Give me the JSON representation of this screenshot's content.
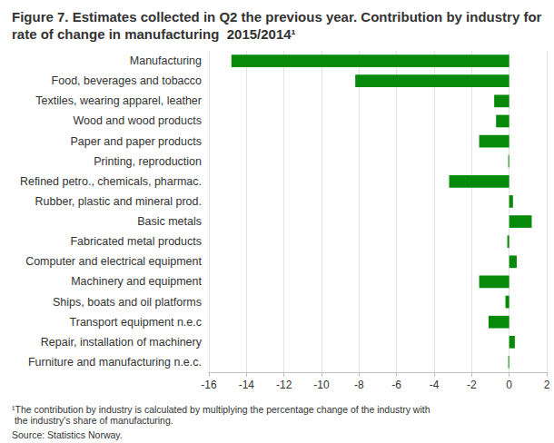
{
  "chart_data": {
    "type": "bar",
    "orientation": "horizontal",
    "title": "Figure 7. Estimates collected in Q2 the previous year. Contribution by industry for rate of change in manufacturing  2015/2014¹",
    "footnote": "¹The contribution by industry is calculated by multiplying the percentage change of the industry with the industry's share of manufacturing.",
    "source": "Source: Statistics Norway.",
    "categories": [
      "Manufacturing",
      "Food, beverages and tobacco",
      "Textiles, wearing apparel, leather",
      "Wood and wood products",
      "Paper and paper products",
      "Printing, reproduction",
      "Refined petro., chemicals, pharmac.",
      "Rubber, plastic and mineral prod.",
      "Basic metals",
      "Fabricated metal products",
      "Computer and electrical equipment",
      "Machinery and equipment",
      "Ships, boats and oil platforms",
      "Transport equipment n.e.c",
      "Repair, installation of machinery",
      "Furniture and manufacturing n.e.c."
    ],
    "values": [
      -14.8,
      -8.2,
      -0.8,
      -0.7,
      -1.6,
      -0.05,
      -3.2,
      0.2,
      1.2,
      -0.1,
      0.4,
      -1.6,
      -0.2,
      -1.1,
      0.3,
      -0.05
    ],
    "color": "#078a0a",
    "xlim": [
      -16,
      2
    ],
    "xticks": [
      -16,
      -14,
      -12,
      -10,
      -8,
      -6,
      -4,
      -2,
      0,
      2
    ],
    "grid": true,
    "data_labels": false
  }
}
